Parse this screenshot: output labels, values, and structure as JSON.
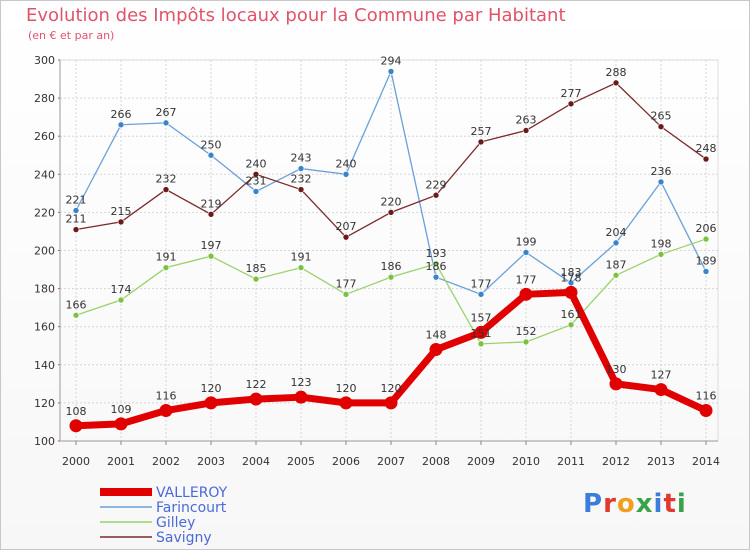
{
  "header": {
    "title": "Evolution des Impôts locaux pour la Commune par Habitant",
    "subtitle": "(en € et par an)"
  },
  "logo": {
    "text": "Proxiti",
    "colors": [
      "#3b7dd8",
      "#e03a2f",
      "#f0a020",
      "#3aa34a",
      "#3b7dd8",
      "#e03a2f",
      "#3aa34a"
    ]
  },
  "chart_data": {
    "type": "line",
    "title": "Evolution des Impôts locaux pour la Commune par Habitant",
    "ylabel": "(en € et par an)",
    "xlabel": "",
    "x": [
      "2000",
      "2001",
      "2002",
      "2003",
      "2004",
      "2005",
      "2006",
      "2007",
      "2008",
      "2009",
      "2010",
      "2011",
      "2012",
      "2013",
      "2014"
    ],
    "ylim": [
      100,
      300
    ],
    "yticks": [
      100,
      120,
      140,
      160,
      180,
      200,
      220,
      240,
      260,
      280,
      300
    ],
    "grid": true,
    "legend_position": "bottom-left",
    "series": [
      {
        "name": "VALLEROY",
        "color": "#e00000",
        "marker": "#e00000",
        "values": [
          108,
          109,
          116,
          120,
          122,
          123,
          120,
          120,
          148,
          157,
          177,
          178,
          130,
          127,
          116
        ],
        "emphasis": true
      },
      {
        "name": "Farincourt",
        "color": "#6aa0d8",
        "marker": "#3a84cc",
        "values": [
          221,
          266,
          267,
          250,
          231,
          243,
          240,
          294,
          186,
          177,
          199,
          183,
          204,
          236,
          189
        ]
      },
      {
        "name": "Gilley",
        "color": "#9ad26a",
        "marker": "#7cc242",
        "values": [
          166,
          174,
          191,
          197,
          185,
          191,
          177,
          186,
          193,
          151,
          152,
          161,
          187,
          198,
          206
        ]
      },
      {
        "name": "Savigny",
        "color": "#7a2a2a",
        "marker": "#6a1a1a",
        "values": [
          211,
          215,
          232,
          219,
          240,
          232,
          207,
          220,
          229,
          257,
          263,
          277,
          288,
          265,
          248
        ]
      }
    ],
    "data_labels": [
      [
        "108",
        "109",
        "116",
        "120",
        "122",
        "123",
        "120",
        "120",
        "148",
        "157",
        "177",
        "178",
        "130",
        "127",
        "116"
      ],
      [
        "221",
        "266",
        "267",
        "250",
        "231",
        "243",
        "240",
        "294",
        "186",
        "177",
        "199",
        "183",
        "204",
        "236",
        "189"
      ],
      [
        "166",
        "174",
        "191",
        "197",
        "185",
        "191",
        "177",
        "186",
        "193",
        "151",
        "152",
        "161",
        "187",
        "198",
        "206"
      ],
      [
        "211",
        "215",
        "232",
        "219",
        "240",
        "232",
        "207",
        "220",
        "229",
        "257",
        "263",
        "277",
        "288",
        "265",
        "248"
      ]
    ]
  }
}
